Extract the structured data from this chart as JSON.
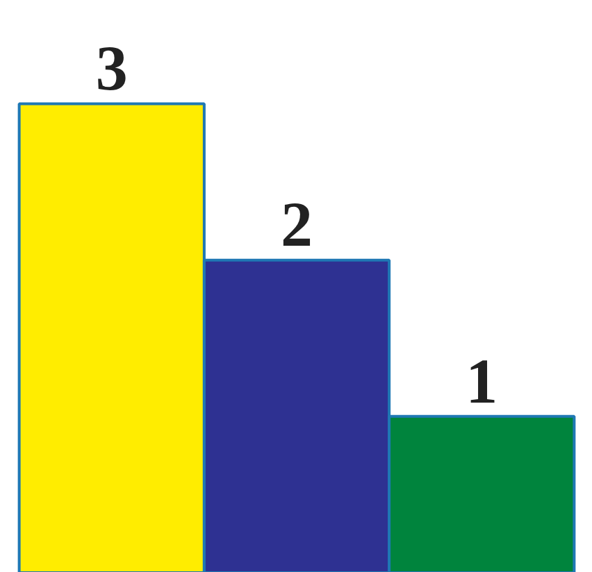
{
  "chart_data": {
    "type": "bar",
    "categories": [
      null,
      null,
      null
    ],
    "values": [
      3,
      2,
      1
    ],
    "colors": [
      "#ffed00",
      "#2e3192",
      "#00843d"
    ],
    "data_labels": true
  }
}
